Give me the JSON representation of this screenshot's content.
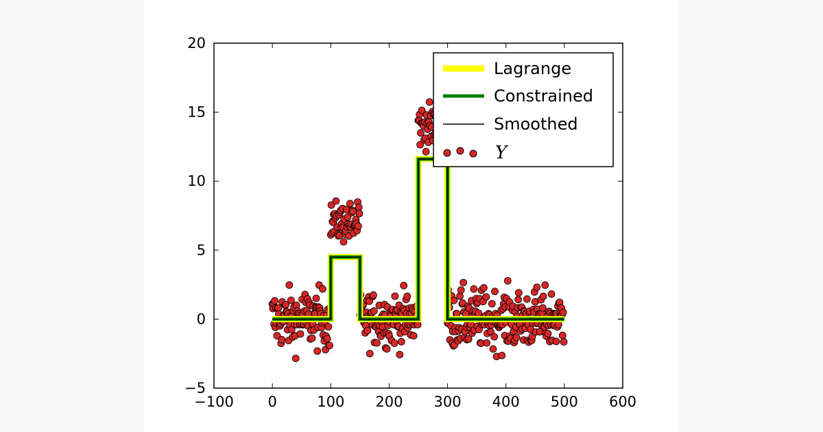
{
  "chart_data": {
    "type": "scatter",
    "title": "",
    "xlabel": "",
    "ylabel": "",
    "xlim": [
      -100,
      600
    ],
    "ylim": [
      -5,
      20
    ],
    "grid": false,
    "legend_position": "top-right",
    "x_ticks": [
      "−100",
      "0",
      "100",
      "200",
      "300",
      "400",
      "500",
      "600"
    ],
    "x_tick_values": [
      -100,
      0,
      100,
      200,
      300,
      400,
      500,
      600
    ],
    "y_ticks": [
      "−5",
      "0",
      "5",
      "10",
      "15",
      "20"
    ],
    "y_tick_values": [
      -5,
      0,
      5,
      10,
      15,
      20
    ],
    "series": [
      {
        "name": "Lagrange",
        "kind": "step-line",
        "color": "#ffff00",
        "x": [
          0,
          100,
          100,
          150,
          150,
          250,
          250,
          300,
          300,
          500
        ],
        "y": [
          0,
          0,
          4.5,
          4.5,
          0,
          0,
          11.6,
          11.6,
          0,
          0
        ]
      },
      {
        "name": "Constrained",
        "kind": "step-line",
        "color": "#008000",
        "x": [
          0,
          100,
          100,
          150,
          150,
          250,
          250,
          300,
          300,
          500
        ],
        "y": [
          0,
          0,
          4.5,
          4.5,
          0,
          0,
          11.6,
          11.6,
          0,
          0
        ]
      },
      {
        "name": "Smoothed",
        "kind": "step-line",
        "color": "#000000",
        "x": [
          0,
          100,
          100,
          150,
          150,
          250,
          250,
          300,
          300,
          500
        ],
        "y": [
          0,
          0,
          4.5,
          4.5,
          0,
          0,
          11.6,
          11.6,
          0,
          0
        ]
      },
      {
        "name": "Y",
        "kind": "scatter",
        "color": "#d62728",
        "segments": [
          {
            "x_start": 0,
            "x_end": 100,
            "mean": 0,
            "spread": 2.4,
            "count": 100
          },
          {
            "x_start": 100,
            "x_end": 150,
            "mean": 7.0,
            "spread": 1.6,
            "count": 50
          },
          {
            "x_start": 150,
            "x_end": 250,
            "mean": 0,
            "spread": 2.2,
            "count": 100
          },
          {
            "x_start": 250,
            "x_end": 300,
            "mean": 14.0,
            "spread": 1.8,
            "count": 50
          },
          {
            "x_start": 300,
            "x_end": 500,
            "mean": 0,
            "spread": 2.4,
            "count": 200
          }
        ]
      }
    ],
    "legend": [
      "Lagrange",
      "Constrained",
      "Smoothed",
      "Y"
    ]
  }
}
